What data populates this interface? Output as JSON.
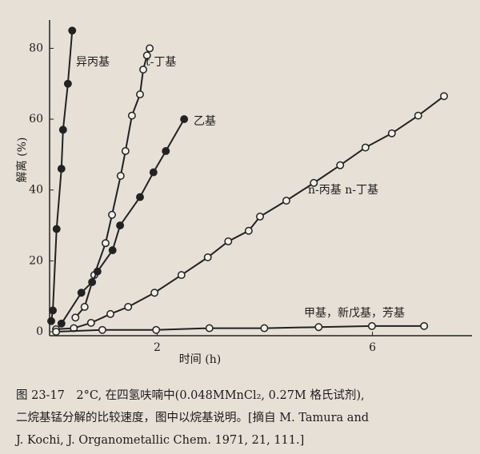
{
  "chart_data": {
    "type": "line",
    "xlabel": "时间 (h)",
    "ylabel": "解离 (%)",
    "xlim": [
      0,
      7.85
    ],
    "ylim": [
      0,
      88
    ],
    "xticks": [
      2,
      6
    ],
    "yticks": [
      0,
      20,
      40,
      60,
      80
    ],
    "series": [
      {
        "name": "异丙基",
        "color": "#222",
        "marker": "filled",
        "x": [
          0.03,
          0.06,
          0.13,
          0.22,
          0.25,
          0.34,
          0.42
        ],
        "values": [
          3,
          6,
          29,
          46,
          57,
          70,
          85
        ]
      },
      {
        "name": "t-丁基",
        "color": "#222",
        "marker": "open",
        "x": [
          0.48,
          0.65,
          0.83,
          1.04,
          1.16,
          1.32,
          1.41,
          1.53,
          1.68,
          1.74,
          1.81,
          1.86
        ],
        "values": [
          4,
          7,
          16,
          25,
          33,
          44,
          51,
          61,
          67,
          74,
          78,
          80
        ]
      },
      {
        "name": "乙基",
        "color": "#222",
        "marker": "filled",
        "x": [
          0.22,
          0.59,
          0.79,
          0.89,
          1.17,
          1.31,
          1.68,
          1.93,
          2.16,
          2.5
        ],
        "values": [
          2.3,
          11,
          14,
          17,
          23,
          30,
          38,
          45,
          51,
          60
        ]
      },
      {
        "name": "n-丙基   n-丁基",
        "color": "#222",
        "marker": "open",
        "x": [
          0.12,
          0.45,
          0.77,
          1.13,
          1.46,
          1.95,
          2.45,
          2.94,
          3.32,
          3.7,
          3.91,
          4.4,
          4.91,
          5.4,
          5.87,
          6.36,
          6.85,
          7.33
        ],
        "values": [
          0.7,
          1,
          2.5,
          5,
          7,
          11,
          16,
          21,
          25.5,
          28.5,
          32.5,
          37,
          42,
          47,
          52,
          56,
          61,
          66.5
        ]
      },
      {
        "name": "甲基，新戊基，芳基",
        "color": "#222",
        "marker": "open",
        "x": [
          0.12,
          0.98,
          1.98,
          2.97,
          3.99,
          5.0,
          5.99,
          6.96
        ],
        "values": [
          0,
          0.5,
          0.5,
          1,
          1,
          1.3,
          1.6,
          1.6
        ]
      }
    ]
  },
  "caption": [
    "图 23-17　2°C, 在四氢呋喃中(0.048MMnCl₂, 0.27M 格氏试剂),",
    "二烷基锰分解的比较速度，图中以烷基说明。[摘自 M. Tamura and",
    "J. Kochi, J. Organometallic Chem. 1971, 21, 111.]"
  ]
}
